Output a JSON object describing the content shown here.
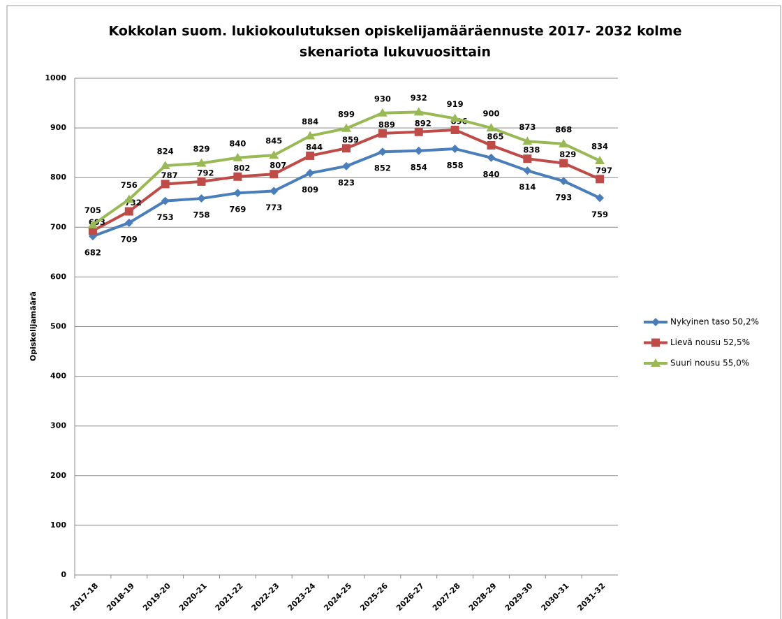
{
  "chart_data": {
    "type": "line",
    "title": [
      "Kokkolan suom. lukiokoulutuksen opiskelijamääräennuste 2017- 2032  kolme",
      "skenariota lukuvuosittain"
    ],
    "y_label": "Opiskelijamäärä",
    "categories": [
      "2017-18",
      "2018-19",
      "2019-20",
      "2020-21",
      "2021-22",
      "2022-23",
      "2023-24",
      "2024-25",
      "2025-26",
      "2026-27",
      "2027-28",
      "2028-29",
      "2029-30",
      "2030-31",
      "2031-32"
    ],
    "series": [
      {
        "name": "Nykyinen taso 50,2%",
        "color": "#4a7ebb",
        "marker": "diamond",
        "values": [
          682,
          709,
          753,
          758,
          769,
          773,
          809,
          823,
          852,
          854,
          858,
          840,
          814,
          793,
          759
        ]
      },
      {
        "name": "Lievä nousu 52,5%",
        "color": "#be4b48",
        "marker": "square",
        "values": [
          693,
          732,
          787,
          792,
          802,
          807,
          844,
          859,
          889,
          892,
          896,
          865,
          838,
          829,
          797
        ]
      },
      {
        "name": "Suuri nousu 55,0%",
        "color": "#98b954",
        "marker": "triangle",
        "values": [
          705,
          756,
          824,
          829,
          840,
          845,
          884,
          899,
          930,
          932,
          919,
          900,
          873,
          868,
          834
        ]
      }
    ],
    "ylim": [
      0,
      1000
    ],
    "yticks": [
      0,
      100,
      200,
      300,
      400,
      500,
      600,
      700,
      800,
      900,
      1000
    ],
    "grid": true,
    "legend": "right"
  }
}
